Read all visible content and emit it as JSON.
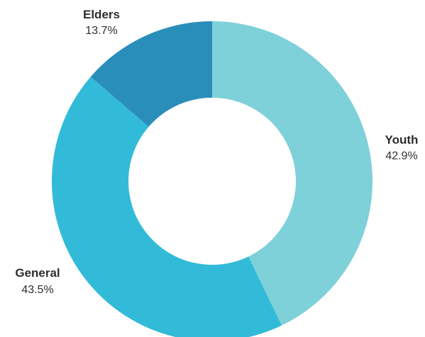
{
  "chart_data": {
    "type": "pie",
    "variant": "donut",
    "slices": [
      {
        "label": "Youth",
        "value": 42.9,
        "value_label": "42.9%",
        "color": "#7ed0d9"
      },
      {
        "label": "General",
        "value": 43.5,
        "value_label": "43.5%",
        "color": "#32bbd8"
      },
      {
        "label": "Elders",
        "value": 13.7,
        "value_label": "13.7%",
        "color": "#2a8ebb"
      }
    ],
    "start": "12 o'clock",
    "direction": "clockwise",
    "legend": "none"
  }
}
